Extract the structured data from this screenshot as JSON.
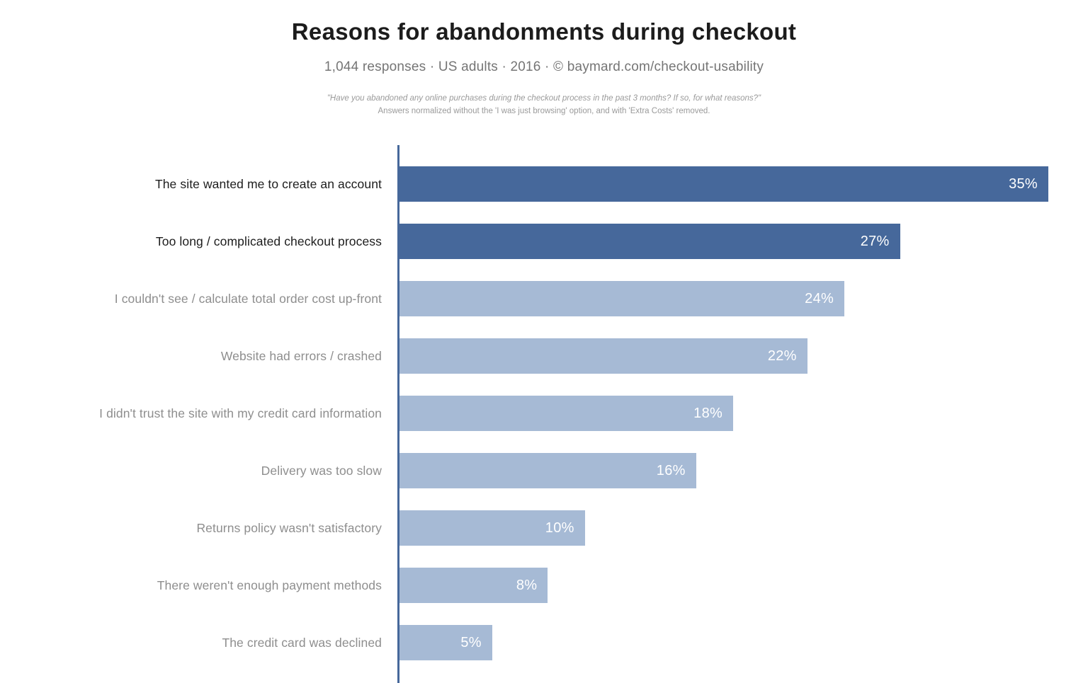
{
  "header": {
    "title": "Reasons for abandonments during checkout",
    "subtitle": "1,044 responses · US adults · 2016 · © baymard.com/checkout-usability",
    "note_line1": "\"Have you abandoned any online purchases during the checkout process in the past 3 months? If so, for what reasons?\"",
    "note_line2": "Answers normalized without the 'I was just browsing' option, and with 'Extra Costs' removed."
  },
  "chart_data": {
    "type": "bar",
    "orientation": "horizontal",
    "title": "Reasons for abandonments during checkout",
    "subtitle": "1,044 responses · US adults · 2016 · © baymard.com/checkout-usability",
    "categories": [
      "The site wanted me to create an account",
      "Too long / complicated checkout process",
      "I couldn't see / calculate total order cost up-front",
      "Website had errors / crashed",
      "I didn't trust the site with my credit card information",
      "Delivery was too slow",
      "Returns policy wasn't satisfactory",
      "There weren't enough payment methods",
      "The credit card was declined"
    ],
    "values": [
      35,
      27,
      24,
      22,
      18,
      16,
      10,
      8,
      5
    ],
    "value_suffix": "%",
    "xlim": [
      0,
      35
    ],
    "grid": false,
    "legend": "none",
    "emphasized_count": 2,
    "colors": {
      "bar_emphasis": "#46689B",
      "bar_normal": "#A6BAD5",
      "axis_line": "#46689B",
      "label_emphasis": "#1d1d1d",
      "label_normal": "#8E8E8E",
      "value_text": "#FFFFFF"
    }
  }
}
